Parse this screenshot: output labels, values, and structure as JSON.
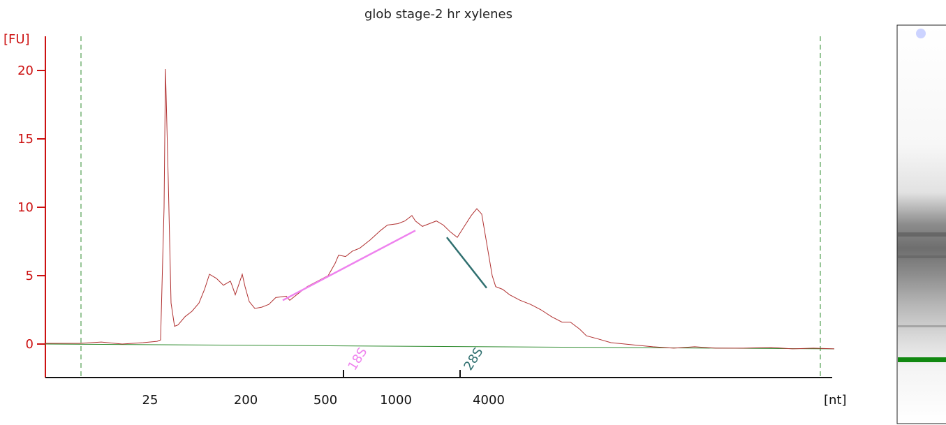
{
  "chart_data": {
    "type": "line",
    "title": "glob stage-2 hr xylenes",
    "ylabel": "[FU]",
    "xlabel": "[nt]",
    "ylim": [
      -2.5,
      22
    ],
    "yticks": [
      0,
      5,
      10,
      15,
      20
    ],
    "xticks": [
      "25",
      "200",
      "500",
      "1000",
      "4000"
    ],
    "grid": false,
    "colors": {
      "trace": "#b03030",
      "baseline": "#2e8b2e",
      "axis_y": "#cc1111",
      "axis_x": "#111111",
      "bounds": "#2e8b2e",
      "marker_18S": "#ee82ee",
      "marker_28S": "#2f6f6f",
      "lane_band": "#118811"
    },
    "markers": [
      {
        "name": "18S",
        "color": "#ee82ee"
      },
      {
        "name": "28S",
        "color": "#2f6f6f"
      }
    ],
    "series": [
      {
        "values": [
          [
            0,
            0.05
          ],
          [
            50,
            0.05
          ],
          [
            80,
            0.15
          ],
          [
            110,
            0.0
          ],
          [
            140,
            0.1
          ],
          [
            160,
            0.2
          ],
          [
            165,
            0.3
          ],
          [
            170,
            10.0
          ],
          [
            172,
            20.1
          ],
          [
            176,
            12.0
          ],
          [
            180,
            3.0
          ],
          [
            185,
            1.3
          ],
          [
            190,
            1.4
          ],
          [
            200,
            2.0
          ],
          [
            210,
            2.4
          ],
          [
            220,
            3.0
          ],
          [
            228,
            4.0
          ],
          [
            235,
            5.1
          ],
          [
            245,
            4.8
          ],
          [
            255,
            4.3
          ],
          [
            265,
            4.6
          ],
          [
            268,
            4.2
          ],
          [
            272,
            3.6
          ],
          [
            278,
            4.5
          ],
          [
            282,
            5.1
          ],
          [
            286,
            4.2
          ],
          [
            292,
            3.1
          ],
          [
            300,
            2.6
          ],
          [
            310,
            2.7
          ],
          [
            320,
            2.9
          ],
          [
            330,
            3.4
          ],
          [
            345,
            3.5
          ],
          [
            350,
            3.2
          ],
          [
            360,
            3.6
          ],
          [
            375,
            4.2
          ],
          [
            390,
            4.6
          ],
          [
            405,
            5.0
          ],
          [
            415,
            5.9
          ],
          [
            420,
            6.5
          ],
          [
            430,
            6.4
          ],
          [
            440,
            6.8
          ],
          [
            450,
            7.0
          ],
          [
            465,
            7.6
          ],
          [
            480,
            8.3
          ],
          [
            490,
            8.7
          ],
          [
            505,
            8.8
          ],
          [
            515,
            9.0
          ],
          [
            525,
            9.4
          ],
          [
            530,
            9.0
          ],
          [
            540,
            8.6
          ],
          [
            550,
            8.8
          ],
          [
            560,
            9.0
          ],
          [
            570,
            8.7
          ],
          [
            580,
            8.2
          ],
          [
            590,
            7.8
          ],
          [
            600,
            8.6
          ],
          [
            610,
            9.4
          ],
          [
            618,
            9.9
          ],
          [
            625,
            9.5
          ],
          [
            630,
            8.0
          ],
          [
            635,
            6.5
          ],
          [
            640,
            5.0
          ],
          [
            645,
            4.2
          ],
          [
            655,
            4.0
          ],
          [
            665,
            3.6
          ],
          [
            680,
            3.2
          ],
          [
            695,
            2.9
          ],
          [
            710,
            2.5
          ],
          [
            725,
            2.0
          ],
          [
            740,
            1.6
          ],
          [
            752,
            1.6
          ],
          [
            765,
            1.1
          ],
          [
            775,
            0.6
          ],
          [
            790,
            0.4
          ],
          [
            810,
            0.1
          ],
          [
            840,
            -0.05
          ],
          [
            870,
            -0.2
          ],
          [
            900,
            -0.3
          ],
          [
            930,
            -0.2
          ],
          [
            960,
            -0.3
          ],
          [
            1000,
            -0.3
          ],
          [
            1040,
            -0.25
          ],
          [
            1070,
            -0.35
          ],
          [
            1100,
            -0.3
          ],
          [
            1130,
            -0.35
          ]
        ]
      }
    ],
    "baseline": [
      [
        0,
        0.0
      ],
      [
        1130,
        -0.35
      ]
    ],
    "region_18S": [
      [
        340,
        3.2
      ],
      [
        530,
        8.3
      ]
    ],
    "region_28S": [
      [
        575,
        7.8
      ],
      [
        632,
        4.1
      ]
    ]
  }
}
